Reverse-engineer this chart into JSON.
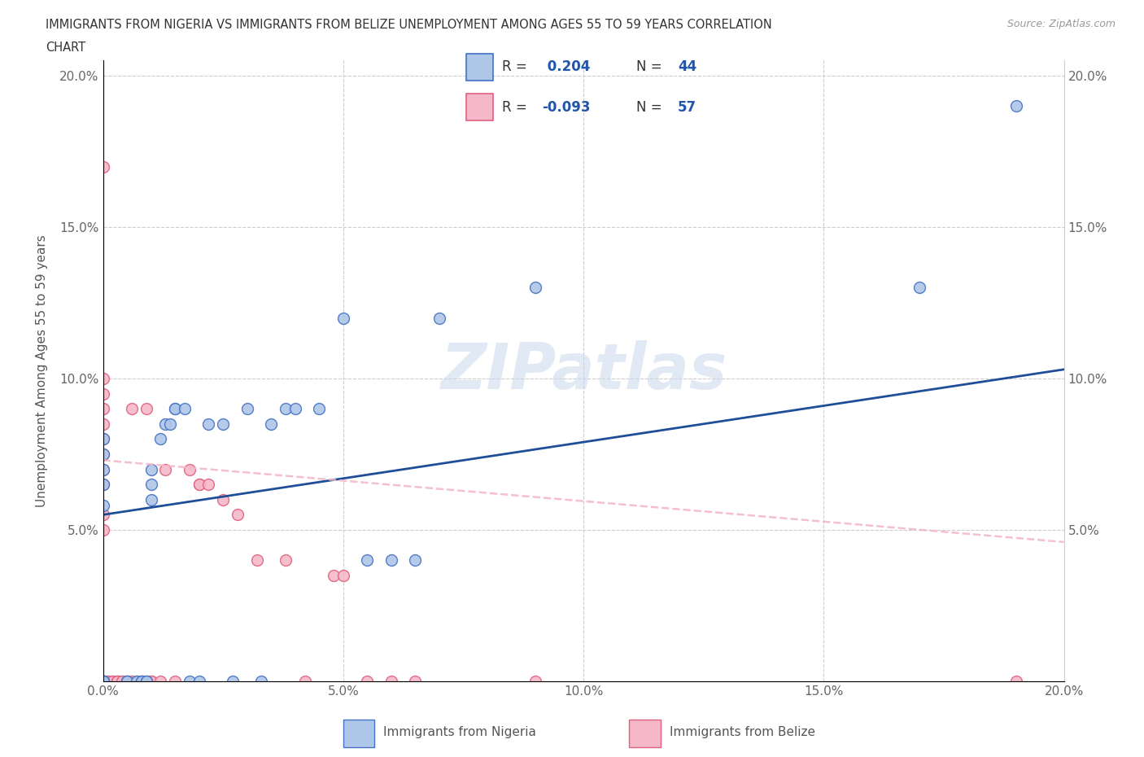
{
  "title_line1": "IMMIGRANTS FROM NIGERIA VS IMMIGRANTS FROM BELIZE UNEMPLOYMENT AMONG AGES 55 TO 59 YEARS CORRELATION",
  "title_line2": "CHART",
  "source": "Source: ZipAtlas.com",
  "ylabel": "Unemployment Among Ages 55 to 59 years",
  "xmin": 0.0,
  "xmax": 0.2,
  "ymin": 0.0,
  "ymax": 0.205,
  "xticks": [
    0.0,
    0.05,
    0.1,
    0.15,
    0.2
  ],
  "yticks": [
    0.0,
    0.05,
    0.1,
    0.15,
    0.2
  ],
  "xticklabels": [
    "0.0%",
    "5.0%",
    "10.0%",
    "15.0%",
    "20.0%"
  ],
  "yticklabels_left": [
    "",
    "5.0%",
    "10.0%",
    "15.0%",
    "20.0%"
  ],
  "yticklabels_right": [
    "",
    "5.0%",
    "10.0%",
    "15.0%",
    "20.0%"
  ],
  "nigeria_color": "#aec6e8",
  "belize_color": "#f5b8c8",
  "nigeria_edge_color": "#4472c4",
  "belize_edge_color": "#e06080",
  "nigeria_R": 0.204,
  "nigeria_N": 44,
  "belize_R": -0.093,
  "belize_N": 57,
  "nigeria_line_color": "#1f4e99",
  "belize_line_color": "#f4b8c8",
  "watermark": "ZIPatlas",
  "legend_label_nigeria": "Immigrants from Nigeria",
  "legend_label_belize": "Immigrants from Belize",
  "nigeria_line_x0": 0.0,
  "nigeria_line_y0": 0.055,
  "nigeria_line_x1": 0.2,
  "nigeria_line_y1": 0.103,
  "belize_line_x0": 0.0,
  "belize_line_y0": 0.073,
  "belize_line_x1": 0.2,
  "belize_line_y1": 0.046,
  "nigeria_x": [
    0.0,
    0.0,
    0.0,
    0.0,
    0.0,
    0.0,
    0.0,
    0.0,
    0.0,
    0.005,
    0.005,
    0.007,
    0.008,
    0.008,
    0.009,
    0.009,
    0.01,
    0.01,
    0.01,
    0.012,
    0.013,
    0.014,
    0.015,
    0.015,
    0.017,
    0.018,
    0.02,
    0.022,
    0.025,
    0.027,
    0.03,
    0.033,
    0.035,
    0.038,
    0.04,
    0.045,
    0.05,
    0.055,
    0.06,
    0.065,
    0.07,
    0.09,
    0.17,
    0.19
  ],
  "nigeria_y": [
    0.0,
    0.0,
    0.0,
    0.0,
    0.058,
    0.065,
    0.07,
    0.075,
    0.08,
    0.0,
    0.0,
    0.0,
    0.0,
    0.0,
    0.0,
    0.0,
    0.06,
    0.065,
    0.07,
    0.08,
    0.085,
    0.085,
    0.09,
    0.09,
    0.09,
    0.0,
    0.0,
    0.085,
    0.085,
    0.0,
    0.09,
    0.0,
    0.085,
    0.09,
    0.09,
    0.09,
    0.12,
    0.04,
    0.04,
    0.04,
    0.12,
    0.13,
    0.13,
    0.19
  ],
  "belize_x": [
    0.0,
    0.0,
    0.0,
    0.0,
    0.0,
    0.0,
    0.0,
    0.0,
    0.0,
    0.0,
    0.0,
    0.0,
    0.0,
    0.0,
    0.0,
    0.0,
    0.0,
    0.0,
    0.001,
    0.001,
    0.002,
    0.002,
    0.003,
    0.003,
    0.003,
    0.004,
    0.004,
    0.005,
    0.005,
    0.006,
    0.006,
    0.007,
    0.008,
    0.008,
    0.009,
    0.009,
    0.01,
    0.01,
    0.012,
    0.013,
    0.015,
    0.018,
    0.02,
    0.02,
    0.022,
    0.025,
    0.028,
    0.032,
    0.038,
    0.042,
    0.048,
    0.05,
    0.055,
    0.06,
    0.065,
    0.09,
    0.19
  ],
  "belize_y": [
    0.0,
    0.0,
    0.0,
    0.0,
    0.0,
    0.0,
    0.0,
    0.05,
    0.055,
    0.065,
    0.07,
    0.075,
    0.08,
    0.085,
    0.09,
    0.095,
    0.1,
    0.17,
    0.0,
    0.0,
    0.0,
    0.0,
    0.0,
    0.0,
    0.0,
    0.0,
    0.0,
    0.0,
    0.0,
    0.0,
    0.09,
    0.0,
    0.0,
    0.0,
    0.0,
    0.09,
    0.0,
    0.0,
    0.0,
    0.07,
    0.0,
    0.07,
    0.065,
    0.065,
    0.065,
    0.06,
    0.055,
    0.04,
    0.04,
    0.0,
    0.035,
    0.035,
    0.0,
    0.0,
    0.0,
    0.0,
    0.0
  ]
}
